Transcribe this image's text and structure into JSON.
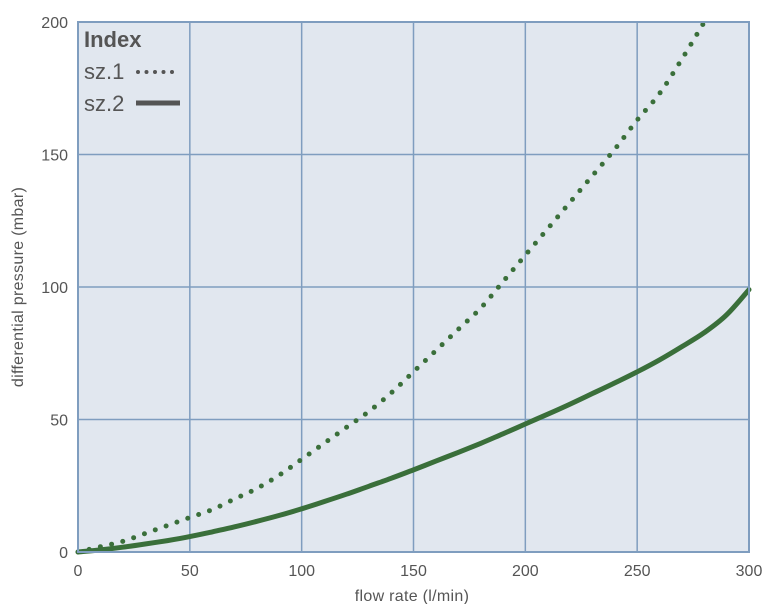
{
  "chart_data": {
    "type": "line",
    "title": "",
    "xlabel": "flow rate (l/min)",
    "ylabel": "differential pressure (mbar)",
    "xlim": [
      0,
      300
    ],
    "ylim": [
      0,
      200
    ],
    "xticks": [
      "0",
      "50",
      "100",
      "150",
      "200",
      "250",
      "300"
    ],
    "yticks": [
      "0",
      "50",
      "100",
      "150",
      "200"
    ],
    "grid": true,
    "legend": {
      "title": "Index",
      "placement": "top-left"
    },
    "colors": {
      "series": "#3a6f3a",
      "plot_bg": "#e1e7ef",
      "grid": "#7f9dbf",
      "legend_marker": "#555555"
    },
    "series": [
      {
        "name": "sz.1",
        "style": "dotted",
        "x": [
          0,
          10,
          20,
          30,
          40,
          50,
          60,
          70,
          80,
          90,
          100,
          110,
          120,
          130,
          140,
          150,
          160,
          170,
          180,
          190,
          200,
          210,
          220,
          230,
          240,
          250,
          260,
          270,
          280
        ],
        "y": [
          0,
          2,
          4,
          7,
          10,
          13,
          16,
          20,
          24,
          29,
          35,
          41,
          47,
          53,
          60,
          68,
          76,
          84,
          92,
          102,
          112,
          122,
          132,
          142,
          152,
          163,
          173,
          186,
          200
        ]
      },
      {
        "name": "sz.2",
        "style": "solid",
        "x": [
          0,
          10,
          20,
          30,
          40,
          50,
          60,
          70,
          80,
          90,
          100,
          110,
          120,
          130,
          140,
          150,
          160,
          170,
          180,
          190,
          200,
          210,
          220,
          230,
          240,
          250,
          260,
          270,
          280,
          290,
          300
        ],
        "y": [
          0,
          0.8,
          1.8,
          3,
          4.3,
          5.8,
          7.6,
          9.5,
          11.6,
          13.8,
          16.3,
          19,
          21.8,
          24.8,
          27.8,
          31,
          34.3,
          37.6,
          41,
          44.6,
          48.3,
          52,
          55.8,
          59.8,
          63.8,
          68,
          72.5,
          77.5,
          82.8,
          89.5,
          99
        ]
      }
    ]
  }
}
